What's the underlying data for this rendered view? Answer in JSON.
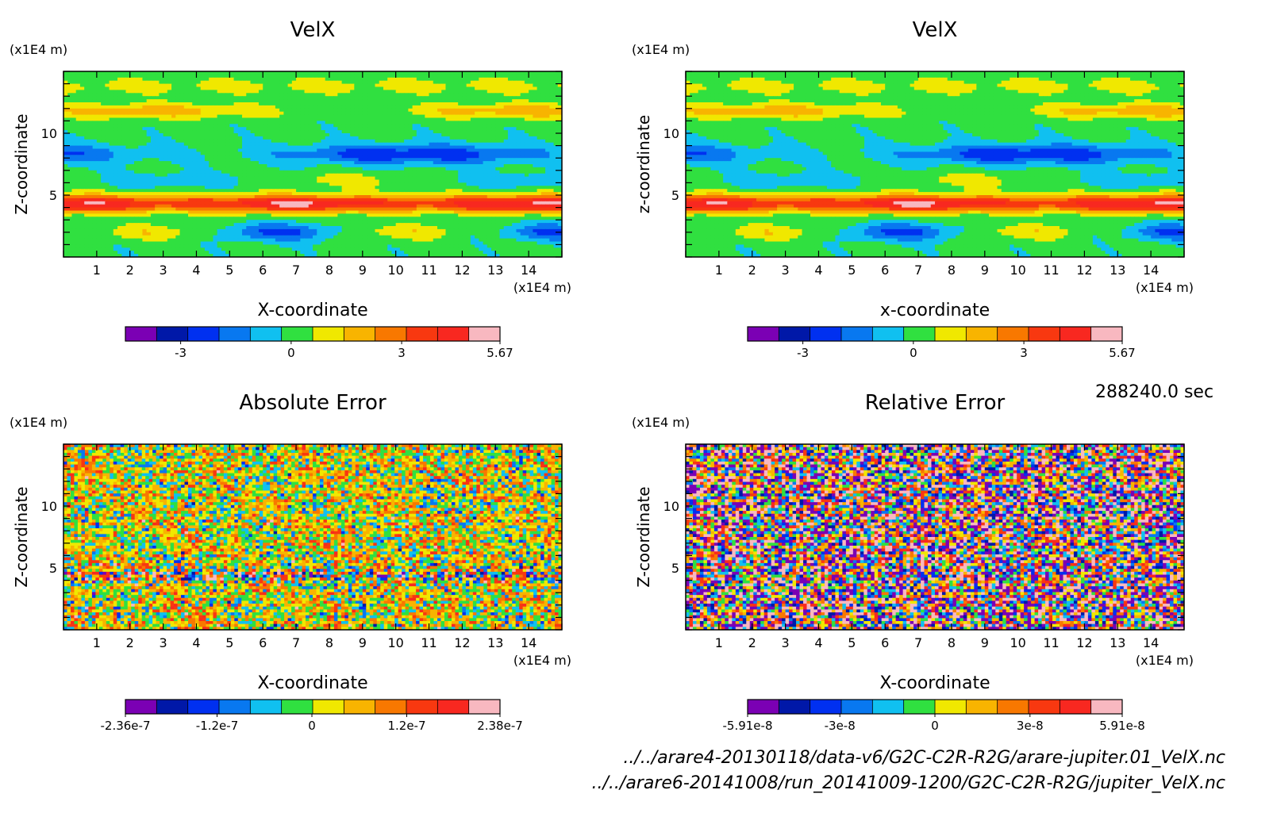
{
  "time_label": "288240.0 sec",
  "files": [
    "../../arare4-20130118/data-v6/G2C-C2R-R2G/arare-jupiter.01_VelX.nc",
    "../../arare6-20141008/run_20141009-1200/G2C-C2R-R2G/jupiter_VelX.nc"
  ],
  "palette": [
    "#7b00b4",
    "#0018a8",
    "#0030f0",
    "#0878f0",
    "#10c0f0",
    "#30e040",
    "#f0e800",
    "#f8b400",
    "#f87800",
    "#f83810",
    "#f82820",
    "#f8b8c0"
  ],
  "chart_data": [
    {
      "type": "heatmap",
      "title": "VelX",
      "xlabel": "X-coordinate",
      "ylabel": "Z-coordinate",
      "x_unit": "(x1E4 m)",
      "y_unit": "(x1E4 m)",
      "x_ticks": [
        "1",
        "2",
        "3",
        "4",
        "5",
        "6",
        "7",
        "8",
        "9",
        "10",
        "11",
        "12",
        "13",
        "14"
      ],
      "y_ticks": [
        "5",
        "10"
      ],
      "xlim": [
        0,
        15
      ],
      "ylim": [
        0,
        15
      ],
      "colorbar_ticks": [
        "-3",
        "0",
        "3",
        "5.67"
      ],
      "colorbar_range": [
        -4.5,
        5.67
      ],
      "pattern": "smooth"
    },
    {
      "type": "heatmap",
      "title": "VelX",
      "xlabel": "x-coordinate",
      "ylabel": "z-coordinate",
      "x_unit": "(x1E4 m)",
      "y_unit": "(x1E4 m)",
      "x_ticks": [
        "1",
        "2",
        "3",
        "4",
        "5",
        "6",
        "7",
        "8",
        "9",
        "10",
        "11",
        "12",
        "13",
        "14"
      ],
      "y_ticks": [
        "5",
        "10"
      ],
      "xlim": [
        0,
        15
      ],
      "ylim": [
        0,
        15
      ],
      "colorbar_ticks": [
        "-3",
        "0",
        "3",
        "5.67"
      ],
      "colorbar_range": [
        -4.5,
        5.67
      ],
      "pattern": "smooth"
    },
    {
      "type": "heatmap",
      "title": "Absolute Error",
      "xlabel": "X-coordinate",
      "ylabel": "Z-coordinate",
      "x_unit": "(x1E4 m)",
      "y_unit": "(x1E4 m)",
      "x_ticks": [
        "1",
        "2",
        "3",
        "4",
        "5",
        "6",
        "7",
        "8",
        "9",
        "10",
        "11",
        "12",
        "13",
        "14"
      ],
      "y_ticks": [
        "5",
        "10"
      ],
      "xlim": [
        0,
        15
      ],
      "ylim": [
        0,
        15
      ],
      "colorbar_ticks": [
        "-2.36e-7",
        "-1.2e-7",
        "0",
        "1.2e-7",
        "2.38e-7"
      ],
      "colorbar_range": [
        -2.36e-07,
        2.38e-07
      ],
      "pattern": "noise-mild"
    },
    {
      "type": "heatmap",
      "title": "Relative Error",
      "xlabel": "X-coordinate",
      "ylabel": "Z-coordinate",
      "x_unit": "(x1E4 m)",
      "y_unit": "(x1E4 m)",
      "x_ticks": [
        "1",
        "2",
        "3",
        "4",
        "5",
        "6",
        "7",
        "8",
        "9",
        "10",
        "11",
        "12",
        "13",
        "14"
      ],
      "y_ticks": [
        "5",
        "10"
      ],
      "xlim": [
        0,
        15
      ],
      "ylim": [
        0,
        15
      ],
      "colorbar_ticks": [
        "-5.91e-8",
        "-3e-8",
        "0",
        "3e-8",
        "5.91e-8"
      ],
      "colorbar_range": [
        -5.91e-08,
        5.91e-08
      ],
      "pattern": "noise-strong"
    }
  ]
}
